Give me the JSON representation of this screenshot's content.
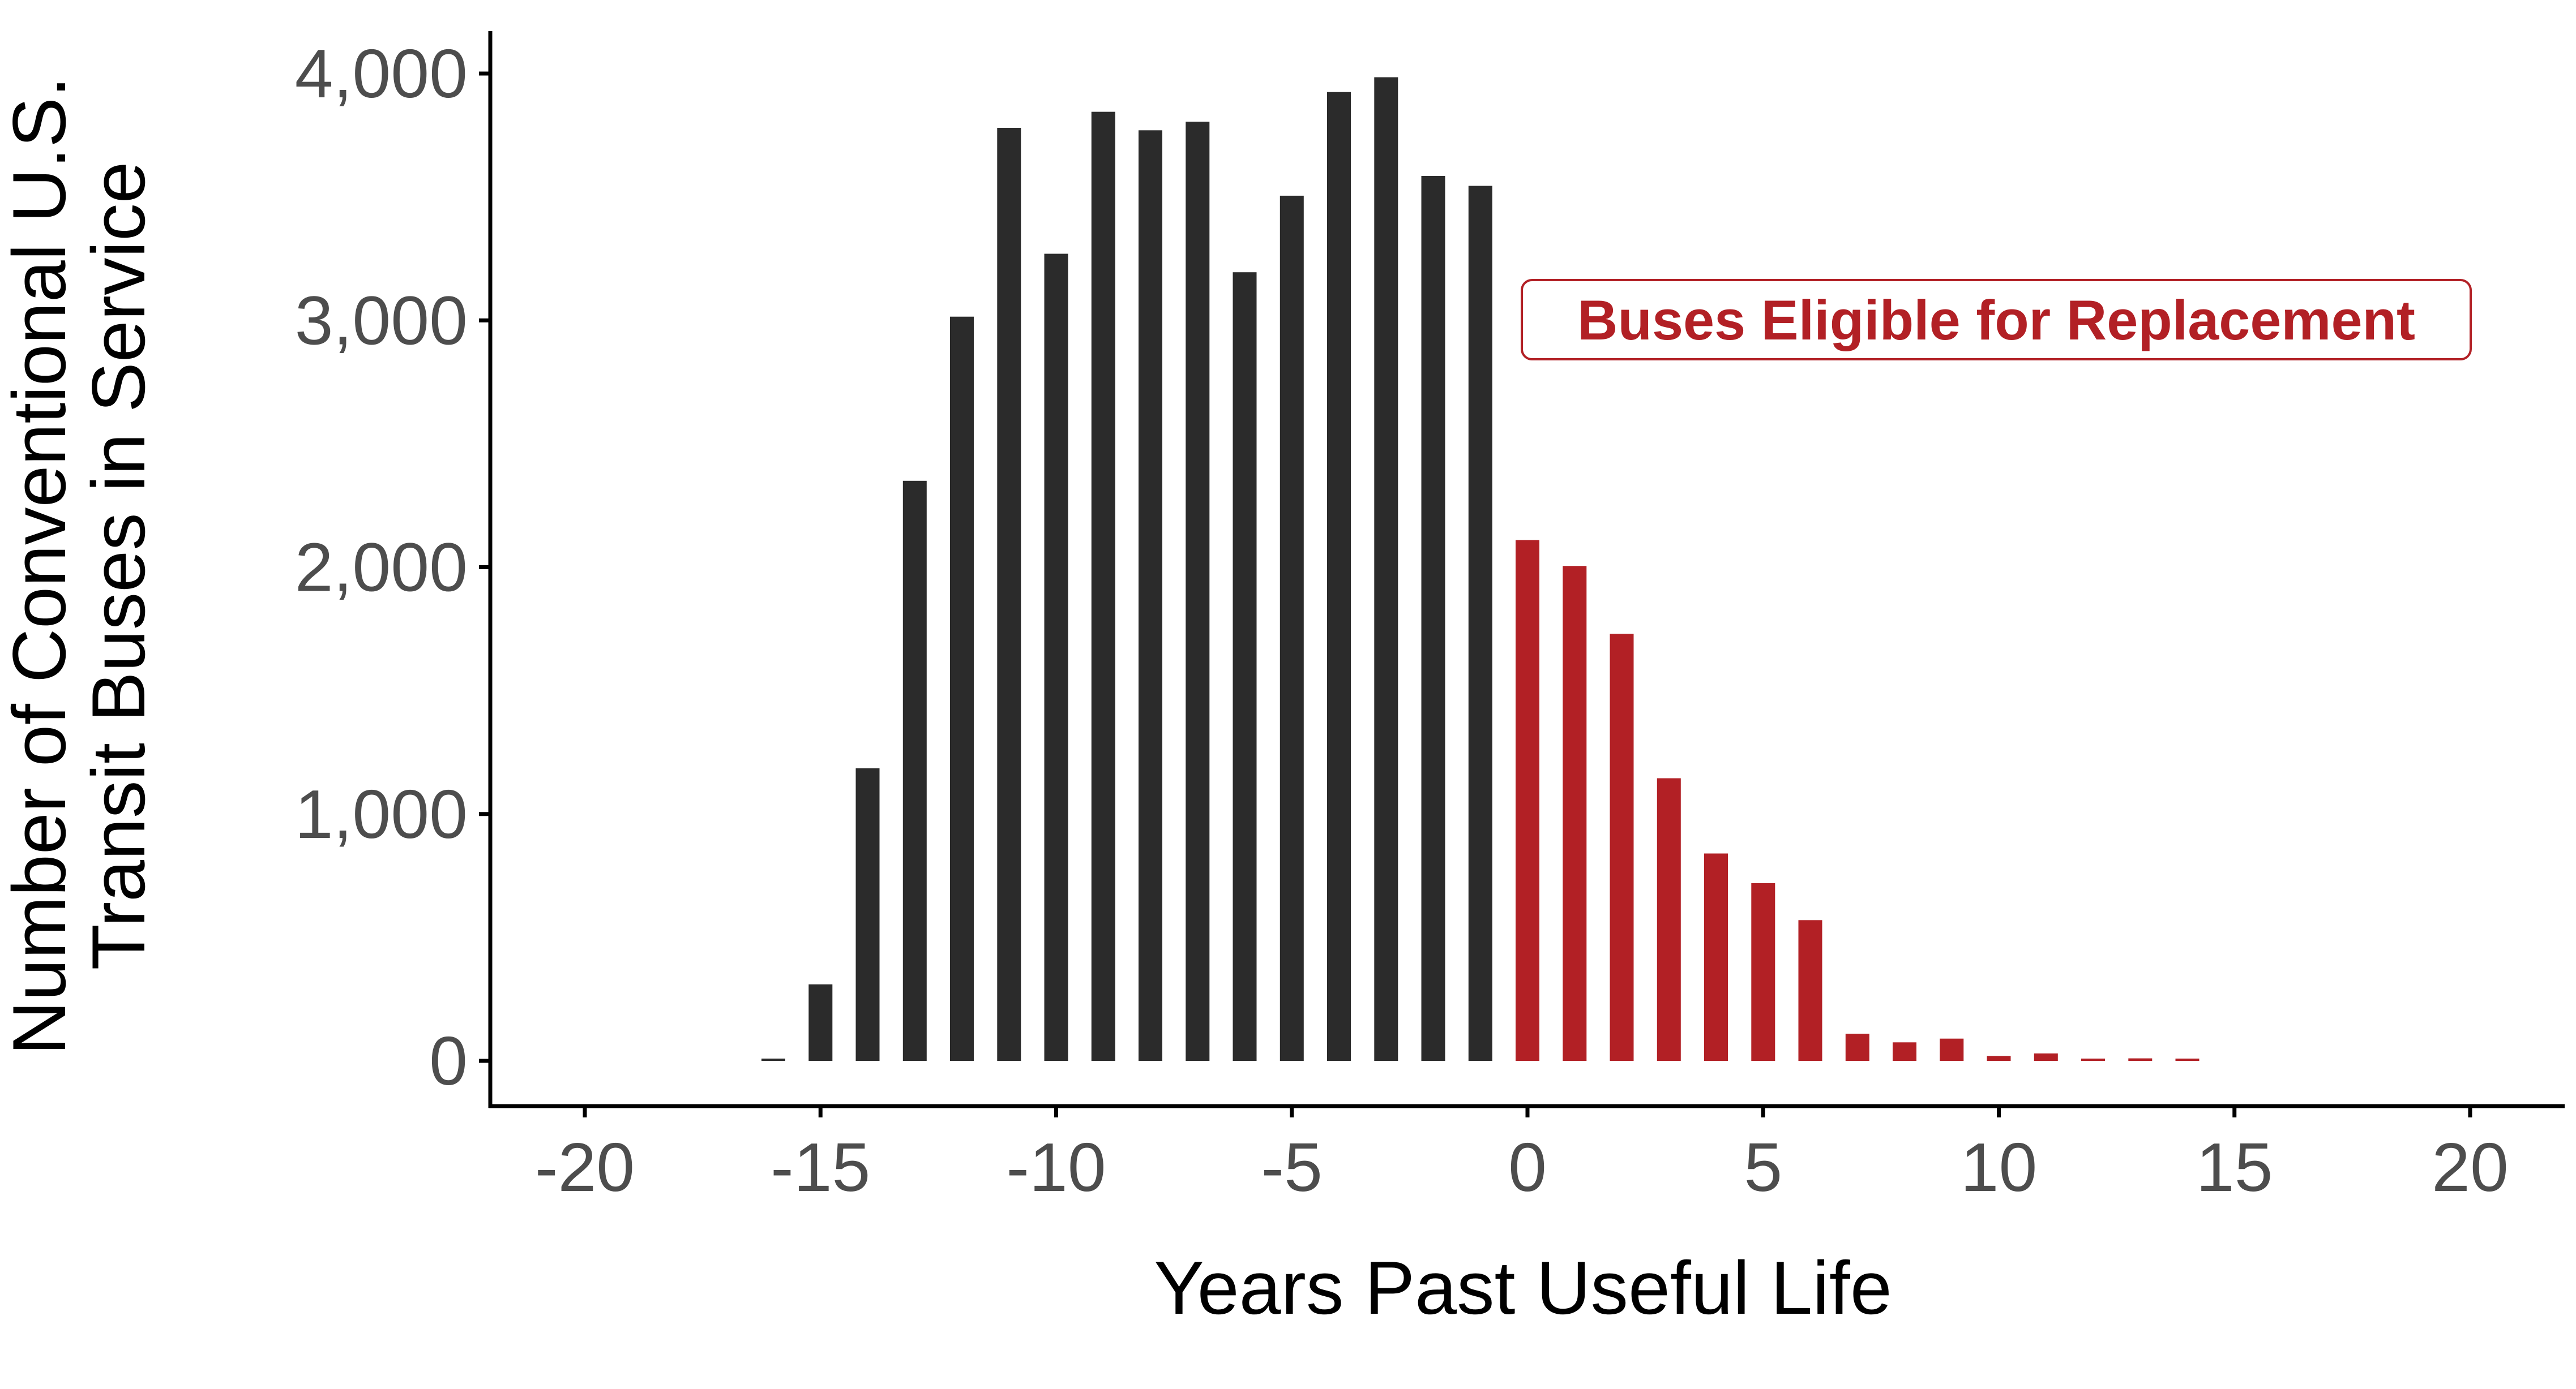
{
  "chart_data": {
    "type": "bar",
    "title": "",
    "xlabel": "Years Past Useful Life",
    "ylabel": [
      "Number of Conventional U.S.",
      "Transit Buses in Service"
    ],
    "xlim": [
      -22,
      22
    ],
    "ylim": [
      0,
      4200
    ],
    "x_ticks": [
      -20,
      -15,
      -10,
      -5,
      0,
      5,
      10,
      15,
      20
    ],
    "x_tick_labels": [
      "-20",
      "-15",
      "-10",
      "-5",
      "0",
      "5",
      "10",
      "15",
      "20"
    ],
    "y_ticks": [
      0,
      1000,
      2000,
      3000,
      4000
    ],
    "y_tick_labels": [
      "0",
      "1,000",
      "2,000",
      "3,000",
      "4,000"
    ],
    "grid": false,
    "legend": "none",
    "colors": {
      "in_life": "#2b2b2b",
      "eligible": "#b22025",
      "axis": "#000000",
      "tick_text": "#4d4d4d"
    },
    "annotation": {
      "text": "Buses Eligible for Replacement",
      "x": 10,
      "y": 3000
    },
    "series": [
      {
        "x": [
          -16,
          -15,
          -14,
          -13,
          -12,
          -11,
          -10,
          -9,
          -8,
          -7,
          -6,
          -5,
          -4,
          -3,
          -2,
          -1
        ],
        "values": [
          5,
          310,
          1185,
          2350,
          3015,
          3780,
          3270,
          3845,
          3770,
          3805,
          3195,
          3505,
          3925,
          3985,
          3585,
          3545
        ]
      },
      {
        "x": [
          0,
          1,
          2,
          3,
          4,
          5,
          6,
          7,
          8,
          9,
          10,
          11,
          12,
          13,
          14
        ],
        "values": [
          2110,
          2005,
          1730,
          1145,
          840,
          720,
          570,
          110,
          75,
          90,
          20,
          30,
          8,
          10,
          5
        ]
      }
    ]
  }
}
